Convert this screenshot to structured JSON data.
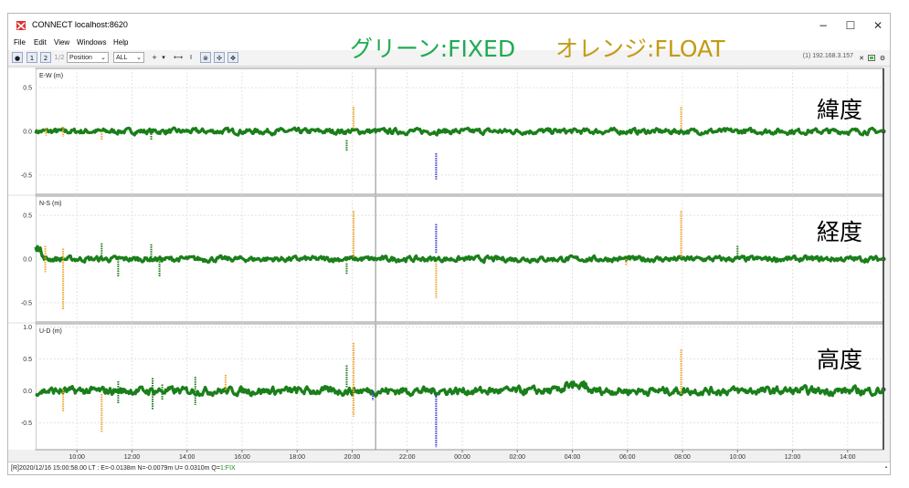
{
  "window": {
    "title": "CONNECT localhost:8620",
    "minimize": "−",
    "maximize": "☐",
    "close": "✕"
  },
  "menu": [
    "File",
    "Edit",
    "View",
    "Windows",
    "Help"
  ],
  "toolbar": {
    "buttons": [
      "●",
      "1",
      "2",
      "1/2"
    ],
    "plot_type": "Position",
    "source": "ALL",
    "ip": "(1) 192.168.3.157",
    "icons": [
      "crosshair-icon",
      "fit-horizontal-icon",
      "fit-vertical-icon",
      "center-icon",
      "pan-horizontal-icon",
      "pan-vertical-icon"
    ]
  },
  "legend": {
    "fixed": "グリーン:FIXED",
    "float": "オレンジ:FLOAT"
  },
  "colors": {
    "fix": "#1a7f1a",
    "float": "#f0a52a",
    "single": "#c0392b",
    "dgps": "#4040d0",
    "grid": "#e2e2e2",
    "cursor": "#888888"
  },
  "plots": [
    {
      "axis_label": "E-W (m)",
      "side_label": "緯度",
      "ticks": [
        "0.5",
        "0.0",
        "-0.5"
      ],
      "tick_values": [
        0.5,
        0.0,
        -0.5
      ],
      "ylim": [
        -0.72,
        0.72
      ],
      "spikes": [
        {
          "hour": 8.88,
          "min": -0.05,
          "max": 0.04,
          "color": "float"
        },
        {
          "hour": 9.5,
          "min": -0.06,
          "max": 0.05,
          "color": "float"
        },
        {
          "hour": 10.9,
          "min": -0.1,
          "max": 0.0,
          "color": "float"
        },
        {
          "hour": 12.7,
          "min": -0.1,
          "max": 0.0,
          "color": "fix"
        },
        {
          "hour": 19.8,
          "min": -0.22,
          "max": -0.1,
          "color": "fix"
        },
        {
          "hour": 20.05,
          "min": 0.02,
          "max": 0.28,
          "color": "float"
        },
        {
          "hour": 23.05,
          "min": -0.55,
          "max": -0.25,
          "color": "dgps"
        },
        {
          "hour": 31.95,
          "min": 0.02,
          "max": 0.28,
          "color": "float"
        }
      ]
    },
    {
      "axis_label": "N-S (m)",
      "side_label": "経度",
      "ticks": [
        "0.5",
        "0.0",
        "-0.5"
      ],
      "tick_values": [
        0.5,
        0.0,
        -0.5
      ],
      "ylim": [
        -0.72,
        0.72
      ],
      "spikes": [
        {
          "hour": 8.85,
          "min": -0.15,
          "max": 0.15,
          "color": "float"
        },
        {
          "hour": 9.5,
          "min": -0.58,
          "max": 0.12,
          "color": "float"
        },
        {
          "hour": 10.9,
          "min": 0.0,
          "max": 0.18,
          "color": "fix"
        },
        {
          "hour": 11.5,
          "min": -0.2,
          "max": 0.0,
          "color": "fix"
        },
        {
          "hour": 12.7,
          "min": 0.0,
          "max": 0.17,
          "color": "fix"
        },
        {
          "hour": 13.0,
          "min": -0.2,
          "max": 0.0,
          "color": "fix"
        },
        {
          "hour": 19.8,
          "min": -0.17,
          "max": -0.05,
          "color": "fix"
        },
        {
          "hour": 20.05,
          "min": 0.02,
          "max": 0.55,
          "color": "float"
        },
        {
          "hour": 23.05,
          "min": -0.45,
          "max": -0.05,
          "color": "float"
        },
        {
          "hour": 23.05,
          "min": 0.06,
          "max": 0.4,
          "color": "dgps"
        },
        {
          "hour": 29.95,
          "min": -0.07,
          "max": 0.0,
          "color": "float"
        },
        {
          "hour": 31.95,
          "min": 0.02,
          "max": 0.55,
          "color": "float"
        },
        {
          "hour": 34.0,
          "min": 0.0,
          "max": 0.15,
          "color": "fix"
        }
      ]
    },
    {
      "axis_label": "U-D (m)",
      "side_label": "高度",
      "ticks": [
        "1.0",
        "0.5",
        "0.0",
        "-0.5"
      ],
      "tick_values": [
        1.0,
        0.5,
        0.0,
        -0.5
      ],
      "ylim": [
        -0.92,
        1.05
      ],
      "spikes": [
        {
          "hour": 9.5,
          "min": -0.32,
          "max": 0.02,
          "color": "float"
        },
        {
          "hour": 10.9,
          "min": -0.65,
          "max": -0.05,
          "color": "float"
        },
        {
          "hour": 11.5,
          "min": -0.2,
          "max": 0.15,
          "color": "fix"
        },
        {
          "hour": 12.75,
          "min": -0.3,
          "max": 0.2,
          "color": "fix"
        },
        {
          "hour": 13.1,
          "min": -0.15,
          "max": 0.1,
          "color": "fix"
        },
        {
          "hour": 14.3,
          "min": -0.22,
          "max": 0.22,
          "color": "fix"
        },
        {
          "hour": 15.4,
          "min": 0.0,
          "max": 0.25,
          "color": "float"
        },
        {
          "hour": 19.8,
          "min": 0.05,
          "max": 0.4,
          "color": "fix"
        },
        {
          "hour": 20.05,
          "min": -0.4,
          "max": 0.75,
          "color": "float"
        },
        {
          "hour": 20.75,
          "min": -0.15,
          "max": 0.0,
          "color": "dgps"
        },
        {
          "hour": 23.05,
          "min": -0.88,
          "max": -0.05,
          "color": "dgps"
        },
        {
          "hour": 31.95,
          "min": -0.05,
          "max": 0.65,
          "color": "float"
        }
      ]
    }
  ],
  "x_axis": {
    "ticks": [
      "10:00",
      "12:00",
      "14:00",
      "16:00",
      "18:00",
      "20:00",
      "22:00",
      "00:00",
      "02:00",
      "04:00",
      "06:00",
      "08:00",
      "10:00",
      "12:00",
      "14:00"
    ],
    "tick_hours": [
      10,
      12,
      14,
      16,
      18,
      20,
      22,
      24,
      26,
      28,
      30,
      32,
      34,
      36,
      38
    ],
    "start_hour": 8.5,
    "end_hour": 39.3,
    "cursor_hour": 20.85
  },
  "status": {
    "text": "[R]2020/12/16 15:00:58.00 LT : E=-0.0138m N=-0.0079m U= 0.0310m Q=",
    "quality": "1:FIX"
  }
}
